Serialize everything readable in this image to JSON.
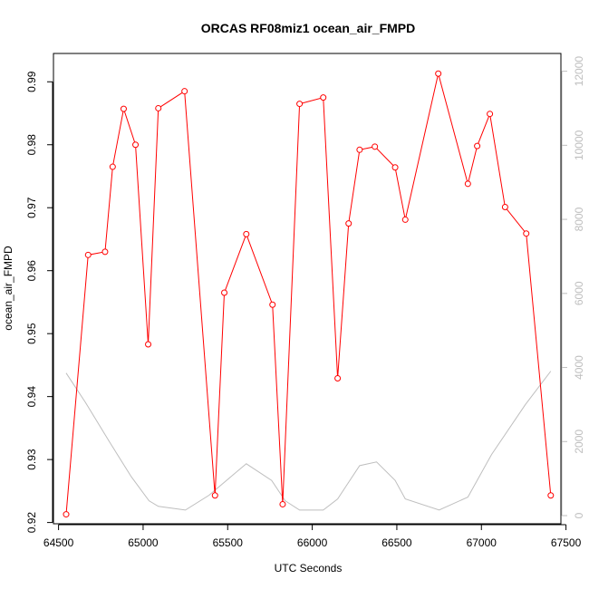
{
  "chart_data": {
    "type": "line",
    "title": "ORCAS RF08miz1 ocean_air_FMPD",
    "xlabel": "UTC Seconds",
    "ylabel": "ocean_air_FMPD",
    "xlim": [
      64470,
      67470
    ],
    "ylim": [
      0.9198,
      0.9945
    ],
    "y2lim": [
      -220,
      12480
    ],
    "x_ticks": [
      64500,
      65000,
      65500,
      66000,
      66500,
      67000,
      67500
    ],
    "y_ticks": [
      0.92,
      0.93,
      0.94,
      0.95,
      0.96,
      0.97,
      0.98,
      0.99
    ],
    "y2_ticks": [
      0,
      2000,
      4000,
      6000,
      8000,
      10000,
      12000
    ],
    "grid": false,
    "series": [
      {
        "axis": "left",
        "color": "#ff0000",
        "marker": "open-circle",
        "x": [
          64545,
          64675,
          64775,
          64820,
          64885,
          64955,
          65030,
          65090,
          65245,
          65425,
          65480,
          65610,
          65765,
          65825,
          65925,
          66065,
          66150,
          66215,
          66280,
          66370,
          66490,
          66550,
          66745,
          66920,
          66975,
          67050,
          67140,
          67265,
          67410
        ],
        "y": [
          0.9213,
          0.9625,
          0.963,
          0.9765,
          0.9857,
          0.98,
          0.9483,
          0.9858,
          0.9885,
          0.9243,
          0.9565,
          0.9658,
          0.9546,
          0.9229,
          0.9865,
          0.9875,
          0.9429,
          0.9675,
          0.9792,
          0.9797,
          0.9764,
          0.9681,
          0.9913,
          0.9738,
          0.9798,
          0.9849,
          0.9701,
          0.9659,
          0.9243
        ]
      },
      {
        "axis": "right",
        "color": "#bebebe",
        "marker": "none",
        "x": [
          64545,
          64660,
          64800,
          64930,
          65035,
          65090,
          65250,
          65390,
          65480,
          65610,
          65760,
          65840,
          65925,
          66065,
          66150,
          66280,
          66380,
          66490,
          66550,
          66750,
          66920,
          67060,
          67260,
          67410
        ],
        "y": [
          3850,
          3050,
          2000,
          1050,
          400,
          250,
          150,
          550,
          900,
          1400,
          950,
          400,
          150,
          150,
          450,
          1350,
          1450,
          950,
          450,
          150,
          500,
          1650,
          3000,
          3900
        ]
      }
    ]
  }
}
